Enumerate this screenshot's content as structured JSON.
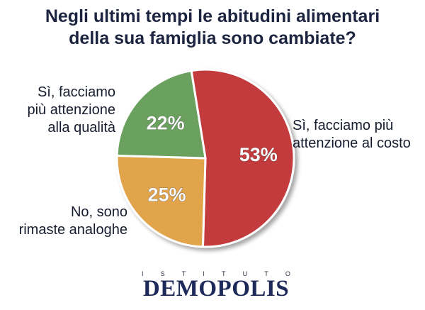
{
  "title": {
    "line1": "Negli ultimi tempi le abitudini alimentari",
    "line2": "della sua famiglia sono cambiate?"
  },
  "chart_data": {
    "type": "pie",
    "title": "Negli ultimi tempi le abitudini alimentari della sua famiglia sono cambiate?",
    "slices": [
      {
        "label": "Sì, facciamo più attenzione al costo",
        "value": 53,
        "value_label": "53%",
        "color": "#c33a3d"
      },
      {
        "label": "No, sono rimaste analoghe",
        "value": 25,
        "value_label": "25%",
        "color": "#e2a44c"
      },
      {
        "label": "Sì, facciamo più attenzione alla qualità",
        "value": 22,
        "value_label": "22%",
        "color": "#6ba15f"
      }
    ]
  },
  "labels": {
    "costo": [
      "Sì, facciamo più",
      "attenzione al costo"
    ],
    "qualita": [
      "Sì, facciamo",
      "più attenzione",
      "alla qualità"
    ],
    "analoghe": [
      "No, sono",
      "rimaste analoghe"
    ]
  },
  "logo": {
    "istituto": [
      "I",
      "S",
      "T",
      "I",
      "T",
      "U",
      "T",
      "O"
    ],
    "name": "DEMOPOLIS"
  }
}
